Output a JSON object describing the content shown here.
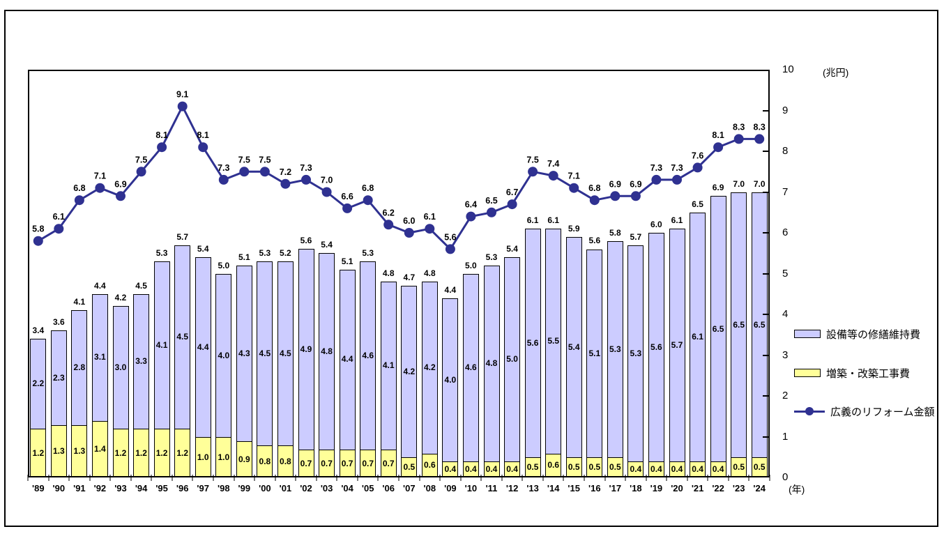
{
  "axes": {
    "y_unit": "(兆円)",
    "x_unit": "(年)",
    "y_ticks": [
      10,
      9,
      8,
      7,
      6,
      5,
      4,
      3,
      2,
      1,
      0
    ],
    "ylim": [
      0,
      10
    ]
  },
  "legend": {
    "items": [
      {
        "label": "設備等の修繕維持費",
        "swatch": "bar",
        "color": "#ccccff"
      },
      {
        "label": "増築・改築工事費",
        "swatch": "bar",
        "color": "#ffff99"
      },
      {
        "label": "広義のリフォーム金額",
        "swatch": "line",
        "color": "#2f3191"
      }
    ]
  },
  "chart_data": {
    "type": "combo",
    "subtype": "stacked-bar-with-line",
    "categories": [
      "'89",
      "'90",
      "'91",
      "'92",
      "'93",
      "'94",
      "'95",
      "'96",
      "'97",
      "'98",
      "'99",
      "'00",
      "'01",
      "'02",
      "'03",
      "'04",
      "'05",
      "'06",
      "'07",
      "'08",
      "'09",
      "'10",
      "'11",
      "'12",
      "'13",
      "'14",
      "'15",
      "'16",
      "'17",
      "'18",
      "'19",
      "'20",
      "'21",
      "'22",
      "'23",
      "'24"
    ],
    "bar_series": [
      {
        "name": "増築・改築工事費",
        "role": "bottom",
        "color": "#ffff99",
        "values": [
          1.2,
          1.3,
          1.3,
          1.4,
          1.2,
          1.2,
          1.2,
          1.2,
          1.0,
          1.0,
          0.9,
          0.8,
          0.8,
          0.7,
          0.7,
          0.7,
          0.7,
          0.7,
          0.5,
          0.6,
          0.4,
          0.4,
          0.4,
          0.4,
          0.5,
          0.6,
          0.5,
          0.5,
          0.5,
          0.4,
          0.4,
          0.4,
          0.4,
          0.4,
          0.5,
          0.5
        ]
      },
      {
        "name": "設備等の修繕維持費",
        "role": "top",
        "color": "#ccccff",
        "values": [
          2.2,
          2.3,
          2.8,
          3.1,
          3.0,
          3.3,
          4.1,
          4.5,
          4.4,
          4.0,
          4.3,
          4.5,
          4.5,
          4.9,
          4.8,
          4.4,
          4.6,
          4.1,
          4.2,
          4.2,
          4.0,
          4.6,
          4.8,
          5.0,
          5.6,
          5.5,
          5.4,
          5.1,
          5.3,
          5.3,
          5.6,
          5.7,
          6.1,
          6.5,
          6.5,
          6.5
        ]
      }
    ],
    "bar_total_labels": [
      3.4,
      3.6,
      4.1,
      4.4,
      4.2,
      4.5,
      5.3,
      5.7,
      5.4,
      5.0,
      5.1,
      5.3,
      5.2,
      5.6,
      5.4,
      5.1,
      5.3,
      4.8,
      4.7,
      4.8,
      4.4,
      5.0,
      5.3,
      5.4,
      6.1,
      6.1,
      5.9,
      5.6,
      5.8,
      5.7,
      6.0,
      6.1,
      6.5,
      6.9,
      7.0,
      7.0
    ],
    "line_series": {
      "name": "広義のリフォーム金額",
      "color": "#2f3191",
      "marker": "circle",
      "values": [
        5.8,
        6.1,
        6.8,
        7.1,
        6.9,
        7.5,
        8.1,
        9.1,
        8.1,
        7.3,
        7.5,
        7.5,
        7.2,
        7.3,
        7.0,
        6.6,
        6.8,
        6.2,
        6.0,
        6.1,
        5.6,
        6.4,
        6.5,
        6.7,
        7.5,
        7.4,
        7.1,
        6.8,
        6.9,
        6.9,
        7.3,
        7.3,
        7.6,
        8.1,
        8.3,
        8.3
      ]
    },
    "ylim": [
      0,
      10
    ],
    "grid": false,
    "legend_position": "right",
    "value_label_decimals": 1
  }
}
